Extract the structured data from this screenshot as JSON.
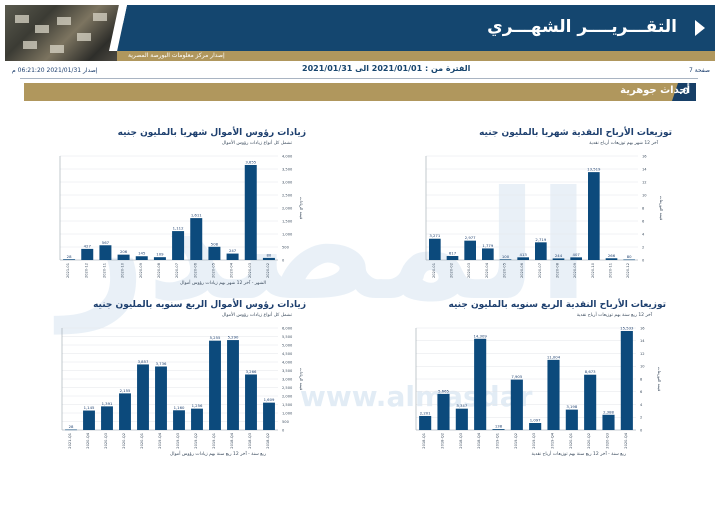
{
  "header": {
    "title": "التقـــريــــر الشهـــري",
    "subtitle": "إصدار مركز معلومات البورصة المصرية"
  },
  "meta": {
    "page": "صفحة 7",
    "period": "الفترة من : 2021/01/01 الى 2021/01/31",
    "issued": "إصدار 2021/01/31 06:21:20 م"
  },
  "section": {
    "number": ".0",
    "title": "أحداث جوهرية"
  },
  "watermark": {
    "big": "المصدر",
    "url": "www.almasdar"
  },
  "chart_data": [
    {
      "id": "monthly-dividends",
      "type": "bar",
      "title": "توزيعات الأرباح النقدية شهريا بالمليون جنيه",
      "subtitle": "آخر 12 شهر بهم توزيعات أرباح نقدية",
      "note": "",
      "ylabel": "قيمة التوزيعات",
      "ylim": [
        0,
        16
      ],
      "yticks": [
        "0",
        "2",
        "4",
        "6",
        "8",
        "10",
        "12",
        "14",
        "16"
      ],
      "categories": [
        "2020-01",
        "2020-02",
        "2020-03",
        "2020-04",
        "2020-05",
        "2020-06",
        "2020-07",
        "2020-08",
        "2020-09",
        "2020-10",
        "2020-11",
        "2020-12"
      ],
      "values": [
        3.271,
        0.617,
        2.977,
        1.779,
        0.1,
        0.413,
        2.719,
        0.244,
        0.407,
        13.519,
        0.266,
        0.08
      ],
      "labels": [
        "3,271",
        "617",
        "2,977",
        "1,779",
        "100",
        "413",
        "2,719",
        "244",
        "407",
        "13,519",
        "266",
        "80"
      ]
    },
    {
      "id": "monthly-capital-increases",
      "type": "bar",
      "title": "زيادات رؤوس الأموال شهريا بالمليون جنيه",
      "subtitle": "تشمل كل أنواع زيادات رؤوس الأموال",
      "note": "الشهر - آخر 12 شهر بهم زيادات رؤوس أموال",
      "ylabel": "قيمة الزيادات",
      "ylim": [
        0,
        4000
      ],
      "yticks": [
        "0",
        "500",
        "1,000",
        "1,500",
        "2,000",
        "2,500",
        "3,000",
        "3,500",
        "4,000"
      ],
      "categories": [
        "2021-01",
        "2020-12",
        "2020-11",
        "2020-10",
        "2020-09",
        "2020-08",
        "2020-07",
        "2020-06",
        "2020-05",
        "2020-04",
        "2020-03",
        "2020-02"
      ],
      "values": [
        28,
        427,
        567,
        206,
        145,
        109,
        1112,
        1611,
        508,
        247,
        3655,
        80
      ],
      "labels": [
        "28",
        "427",
        "567",
        "206",
        "145",
        "109",
        "1,112",
        "1,611",
        "508",
        "247",
        "3,655",
        "80"
      ]
    },
    {
      "id": "quarterly-dividends",
      "type": "bar",
      "title": "توزيعات الأرباح النقدية الربع سنويه بالمليون جنيه",
      "subtitle": "آخر 12 ربع سنة بهم توزيعات أرباح نقدية",
      "note": "ربع سنة - آخر 12 ربع سنة بهم توزيعات أرباح نقدية",
      "ylabel": "قيمة التوزيعات",
      "ylim": [
        0,
        16
      ],
      "yticks": [
        "0",
        "2",
        "4",
        "6",
        "8",
        "10",
        "12",
        "14",
        "16"
      ],
      "categories": [
        "2018-Q1",
        "2018-Q2",
        "2018-Q3",
        "2018-Q4",
        "2019-Q1",
        "2019-Q2",
        "2019-Q3",
        "2019-Q4",
        "2020-Q1",
        "2020-Q2",
        "2020-Q3",
        "2020-Q4"
      ],
      "values": [
        2.201,
        5.665,
        3.347,
        14.309,
        0.138,
        7.905,
        1.097,
        11.004,
        3.198,
        8.673,
        2.388,
        15.533
      ],
      "labels": [
        "2,201",
        "5,665",
        "3,347",
        "14,309",
        "138",
        "7,905",
        "1,097",
        "11,004",
        "3,198",
        "8,673",
        "2,388",
        "15,533"
      ]
    },
    {
      "id": "quarterly-capital-increases",
      "type": "bar",
      "title": "زيادات رؤوس الأموال الربع سنويه بالمليون جنيه",
      "subtitle": "تشمل كل أنواع زيادات رؤوس الأموال",
      "note": "ربع سنة - آخر 12 ربع سنة بهم زيادات رؤوس أموال",
      "ylabel": "قيمة الزيادات",
      "ylim": [
        0,
        6000
      ],
      "yticks": [
        "0",
        "500",
        "1,000",
        "1,500",
        "2,000",
        "2,500",
        "3,000",
        "3,500",
        "4,000",
        "4,500",
        "5,000",
        "5,500",
        "6,000"
      ],
      "categories": [
        "2021-Q1",
        "2020-Q4",
        "2020-Q3",
        "2020-Q2",
        "2020-Q1",
        "2019-Q4",
        "2019-Q3",
        "2019-Q2",
        "2019-Q1",
        "2018-Q4",
        "2018-Q3",
        "2018-Q2"
      ],
      "values": [
        28,
        1145,
        1391,
        2155,
        3857,
        3736,
        1160,
        1256,
        5255,
        5290,
        3266,
        1609
      ],
      "labels": [
        "28",
        "1,145",
        "1,391",
        "2,155",
        "3,857",
        "3,736",
        "1,160",
        "1,256",
        "5,255",
        "5,290",
        "3,266",
        "1,609"
      ]
    }
  ]
}
